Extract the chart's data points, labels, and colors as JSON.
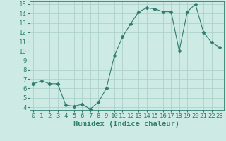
{
  "x": [
    0,
    1,
    2,
    3,
    4,
    5,
    6,
    7,
    8,
    9,
    10,
    11,
    12,
    13,
    14,
    15,
    16,
    17,
    18,
    19,
    20,
    21,
    22,
    23
  ],
  "y": [
    6.5,
    6.8,
    6.5,
    6.5,
    4.2,
    4.1,
    4.3,
    3.8,
    4.5,
    6.0,
    9.5,
    11.5,
    12.9,
    14.2,
    14.6,
    14.5,
    14.2,
    14.2,
    10.0,
    14.2,
    15.0,
    12.0,
    10.9,
    10.4
  ],
  "line_color": "#2e7d6e",
  "marker": "D",
  "marker_size": 2.5,
  "bg_color": "#ceeae4",
  "grid_color": "#a8cdc7",
  "xlabel": "Humidex (Indice chaleur)",
  "ylim": [
    4,
    15
  ],
  "xlim": [
    -0.5,
    23.5
  ],
  "yticks": [
    4,
    5,
    6,
    7,
    8,
    9,
    10,
    11,
    12,
    13,
    14,
    15
  ],
  "xticks": [
    0,
    1,
    2,
    3,
    4,
    5,
    6,
    7,
    8,
    9,
    10,
    11,
    12,
    13,
    14,
    15,
    16,
    17,
    18,
    19,
    20,
    21,
    22,
    23
  ],
  "xlabel_fontsize": 7.5,
  "tick_fontsize": 6.5
}
